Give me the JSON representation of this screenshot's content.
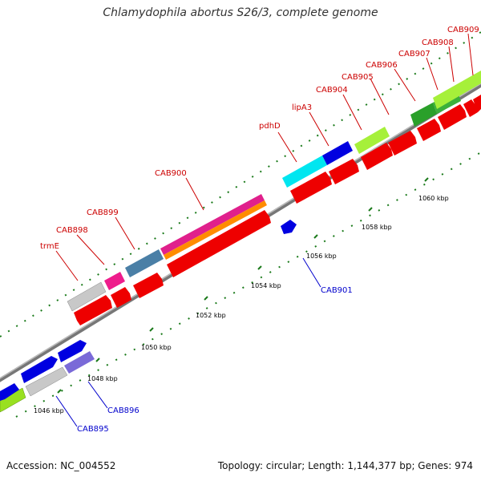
{
  "title": "Chlamydophila abortus S26/3, complete genome",
  "footer": {
    "accession": "Accession: NC_004552",
    "stats": "Topology: circular; Length: 1,144,377 bp; Genes: 974"
  },
  "colors": {
    "forward_label": "#cc0000",
    "reverse_label": "#0000cc",
    "backbone": "#888888",
    "tick": "#006600"
  },
  "scale_labels": [
    "1046 kbp",
    "1048 kbp",
    "1050 kbp",
    "1052 kbp",
    "1054 kbp",
    "1056 kbp",
    "1058 kbp",
    "1060 kbp"
  ],
  "gene_labels": {
    "forward": [
      "trmE",
      "CAB898",
      "CAB899",
      "CAB900",
      "pdhD",
      "lipA3",
      "CAB904",
      "CAB905",
      "CAB906",
      "CAB907",
      "CAB908",
      "CAB909"
    ],
    "reverse": [
      "CAB895",
      "CAB896",
      "CAB901"
    ]
  }
}
